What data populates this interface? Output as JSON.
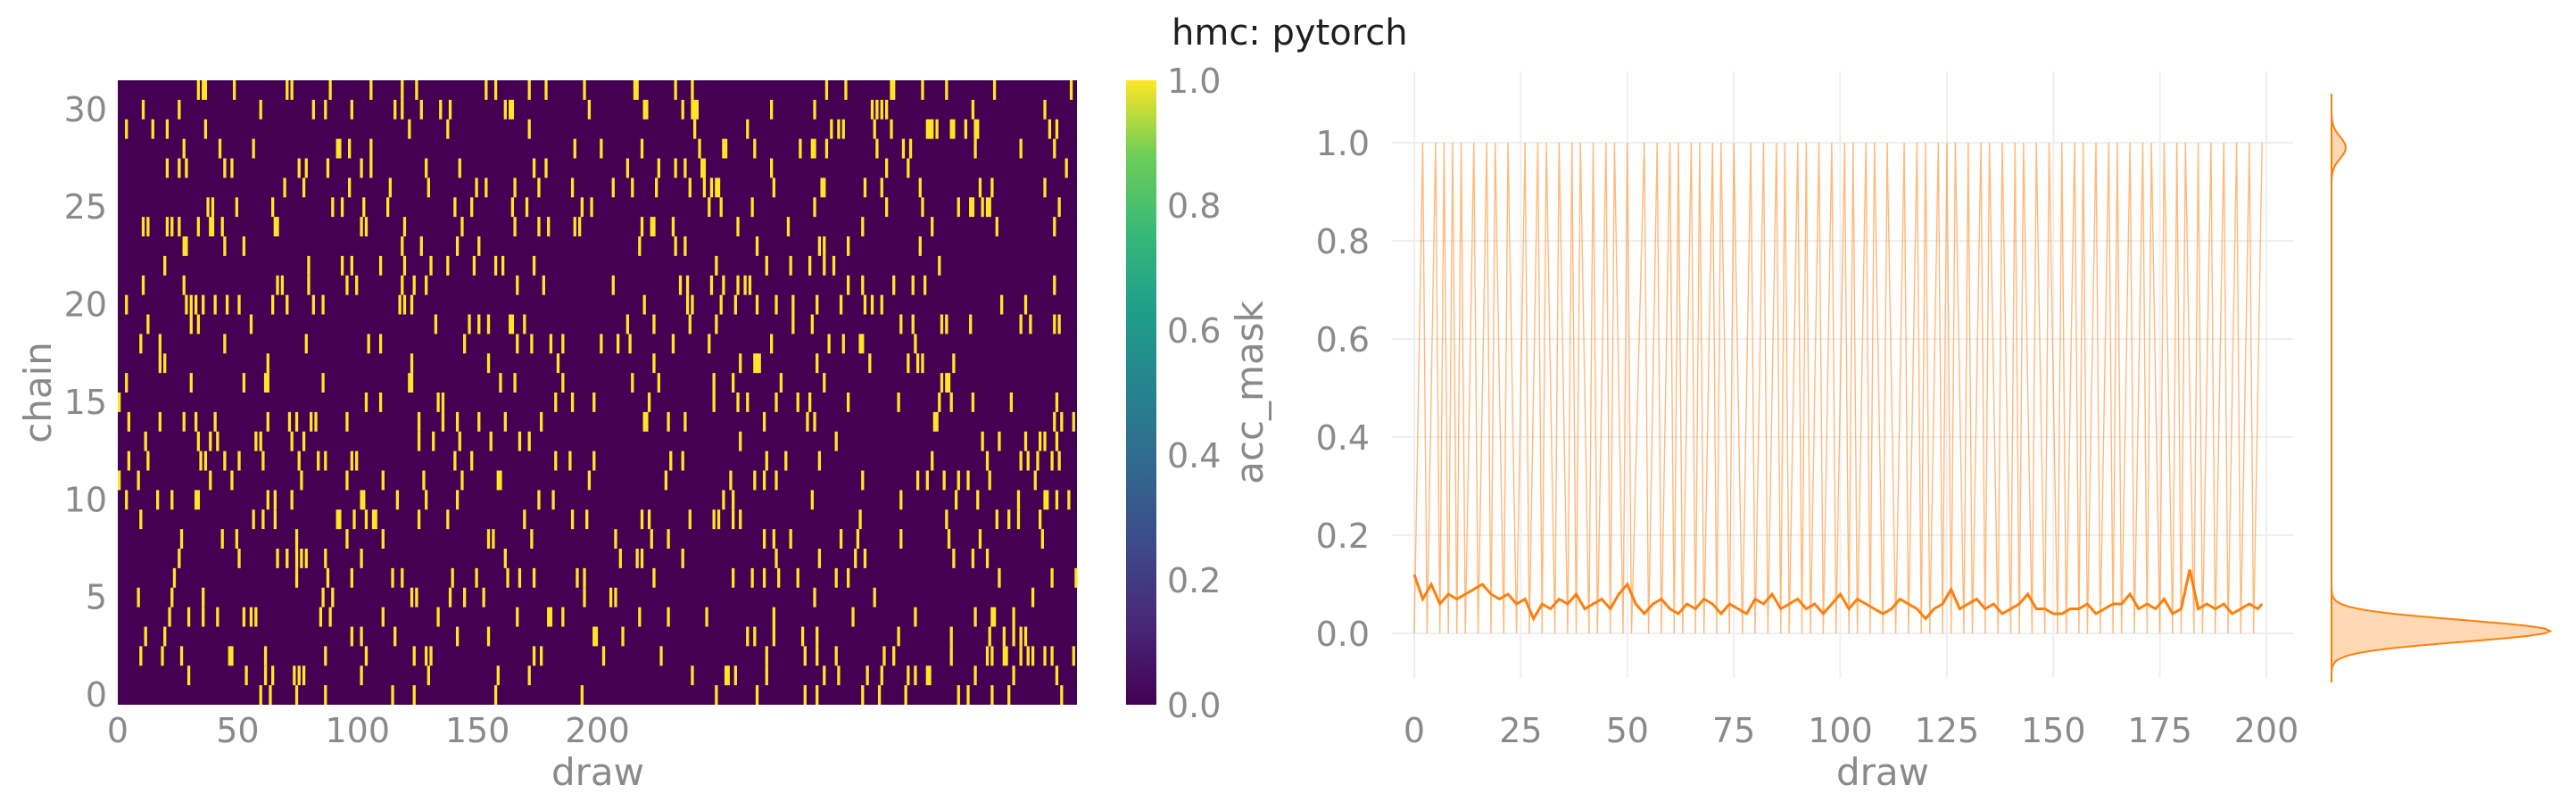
{
  "title": "hmc: pytorch",
  "colors": {
    "heat_low": "#440154",
    "heat_high": "#fde725",
    "line": "#ff7f0e",
    "line_faint": "#ff7f0e",
    "density_fill": "#ffd9b3",
    "grid": "#efefef",
    "text": "#8a8a8a"
  },
  "chart_data": [
    {
      "type": "heatmap",
      "xlabel": "draw",
      "ylabel": "chain",
      "x_ticks": [
        "0",
        "50",
        "100",
        "150",
        "200"
      ],
      "y_ticks": [
        "0",
        "5",
        "10",
        "15",
        "20",
        "25",
        "30"
      ],
      "xlim": [
        0,
        400
      ],
      "ylim": [
        0,
        32
      ],
      "n_draws": 400,
      "n_chains": 32,
      "colorbar": {
        "label": "acc_mask",
        "ticks": [
          "0.0",
          "0.2",
          "0.4",
          "0.6",
          "0.8",
          "1.0"
        ],
        "range": [
          0,
          1
        ]
      },
      "values_note": "binary acceptance mask (0 = rejected, 1 = accepted); sparse yellow accepts"
    },
    {
      "type": "line",
      "xlabel": "draw",
      "ylabel": "",
      "x_ticks": [
        "0",
        "25",
        "50",
        "75",
        "100",
        "125",
        "150",
        "175",
        "200"
      ],
      "y_ticks": [
        "0.0",
        "0.2",
        "0.4",
        "0.6",
        "0.8",
        "1.0"
      ],
      "xlim": [
        0,
        200
      ],
      "ylim": [
        0,
        1
      ],
      "series": [
        {
          "style": "faint",
          "x": [
            0,
            2,
            3,
            5,
            6,
            7,
            8,
            9,
            10,
            11,
            12,
            14,
            15,
            17,
            18,
            19,
            21,
            22,
            24,
            26,
            27,
            29,
            30,
            31,
            33,
            34,
            36,
            37,
            38,
            39,
            41,
            42,
            43,
            45,
            46,
            47,
            49,
            50,
            51,
            54,
            55,
            57,
            58,
            60,
            61,
            62,
            63,
            65,
            66,
            67,
            68,
            70,
            71,
            72,
            74,
            75,
            77,
            79,
            80,
            82,
            83,
            85,
            86,
            87,
            88,
            90,
            91,
            92,
            93,
            95,
            96,
            98,
            99,
            101,
            102,
            103,
            104,
            106,
            107,
            108,
            110,
            111,
            113,
            115,
            116,
            118,
            119,
            120,
            121,
            123,
            124,
            125,
            126,
            127,
            129,
            130,
            131,
            133,
            134,
            135,
            137,
            138,
            140,
            141,
            142,
            143,
            145,
            146,
            148,
            149,
            151,
            152,
            153,
            155,
            156,
            157,
            158,
            160,
            161,
            163,
            164,
            165,
            166,
            168,
            169,
            171,
            172,
            173,
            175,
            176,
            178,
            179,
            180,
            181,
            183,
            184,
            185,
            187,
            188,
            190,
            191,
            193,
            194,
            196,
            197,
            199
          ],
          "values": [
            0,
            1,
            0,
            1,
            0,
            1,
            0,
            1,
            0,
            1,
            0,
            1,
            0,
            1,
            0,
            1,
            0,
            1,
            0,
            1,
            0,
            1,
            0,
            1,
            0,
            1,
            0,
            1,
            0,
            1,
            0,
            1,
            0,
            1,
            0,
            1,
            0,
            1,
            0,
            1,
            0,
            1,
            0,
            1,
            0,
            1,
            0,
            1,
            0,
            1,
            0,
            1,
            0,
            1,
            0,
            1,
            0,
            1,
            0,
            1,
            0,
            1,
            0,
            1,
            0,
            1,
            0,
            1,
            0,
            1,
            0,
            1,
            0,
            1,
            0,
            1,
            0,
            1,
            0,
            1,
            0,
            1,
            0,
            1,
            0,
            1,
            0,
            1,
            0,
            1,
            0,
            1,
            0,
            1,
            0,
            1,
            0,
            1,
            0,
            1,
            0,
            1,
            0,
            1,
            0,
            1,
            0,
            1,
            0,
            1,
            0,
            1,
            0,
            1,
            0,
            1,
            0,
            1,
            0,
            1,
            0,
            1,
            0,
            1,
            0,
            1,
            0,
            1,
            0,
            1,
            0,
            1,
            0,
            1,
            0,
            1,
            0,
            1,
            0,
            1,
            0,
            1,
            0,
            1,
            0,
            1
          ]
        },
        {
          "style": "mean",
          "x": [
            0,
            2,
            4,
            6,
            8,
            10,
            12,
            14,
            16,
            18,
            20,
            22,
            24,
            26,
            28,
            30,
            32,
            34,
            36,
            38,
            40,
            42,
            44,
            46,
            48,
            50,
            52,
            54,
            56,
            58,
            60,
            62,
            64,
            66,
            68,
            70,
            72,
            74,
            76,
            78,
            80,
            82,
            84,
            86,
            88,
            90,
            92,
            94,
            96,
            98,
            100,
            102,
            104,
            106,
            108,
            110,
            112,
            114,
            116,
            118,
            120,
            122,
            124,
            126,
            128,
            130,
            132,
            134,
            136,
            138,
            140,
            142,
            144,
            146,
            148,
            150,
            152,
            154,
            156,
            158,
            160,
            162,
            164,
            166,
            168,
            170,
            172,
            174,
            176,
            178,
            180,
            182,
            184,
            186,
            188,
            190,
            192,
            194,
            196,
            198,
            199
          ],
          "values": [
            0.12,
            0.07,
            0.1,
            0.06,
            0.08,
            0.07,
            0.08,
            0.09,
            0.1,
            0.08,
            0.07,
            0.08,
            0.06,
            0.07,
            0.03,
            0.06,
            0.05,
            0.07,
            0.06,
            0.08,
            0.05,
            0.06,
            0.07,
            0.05,
            0.08,
            0.1,
            0.06,
            0.04,
            0.06,
            0.07,
            0.05,
            0.04,
            0.06,
            0.05,
            0.07,
            0.06,
            0.04,
            0.06,
            0.05,
            0.04,
            0.07,
            0.06,
            0.08,
            0.05,
            0.06,
            0.07,
            0.05,
            0.06,
            0.04,
            0.06,
            0.08,
            0.05,
            0.07,
            0.06,
            0.05,
            0.04,
            0.05,
            0.07,
            0.06,
            0.05,
            0.03,
            0.05,
            0.06,
            0.09,
            0.05,
            0.06,
            0.07,
            0.05,
            0.06,
            0.04,
            0.05,
            0.06,
            0.08,
            0.05,
            0.05,
            0.04,
            0.04,
            0.05,
            0.05,
            0.06,
            0.04,
            0.05,
            0.06,
            0.06,
            0.08,
            0.05,
            0.06,
            0.05,
            0.07,
            0.04,
            0.05,
            0.13,
            0.05,
            0.06,
            0.05,
            0.06,
            0.04,
            0.05,
            0.06,
            0.05,
            0.06
          ]
        }
      ],
      "marginal": {
        "type": "density",
        "note": "KDE along y: large mass near 0.0, small bump near 1.0"
      }
    }
  ]
}
